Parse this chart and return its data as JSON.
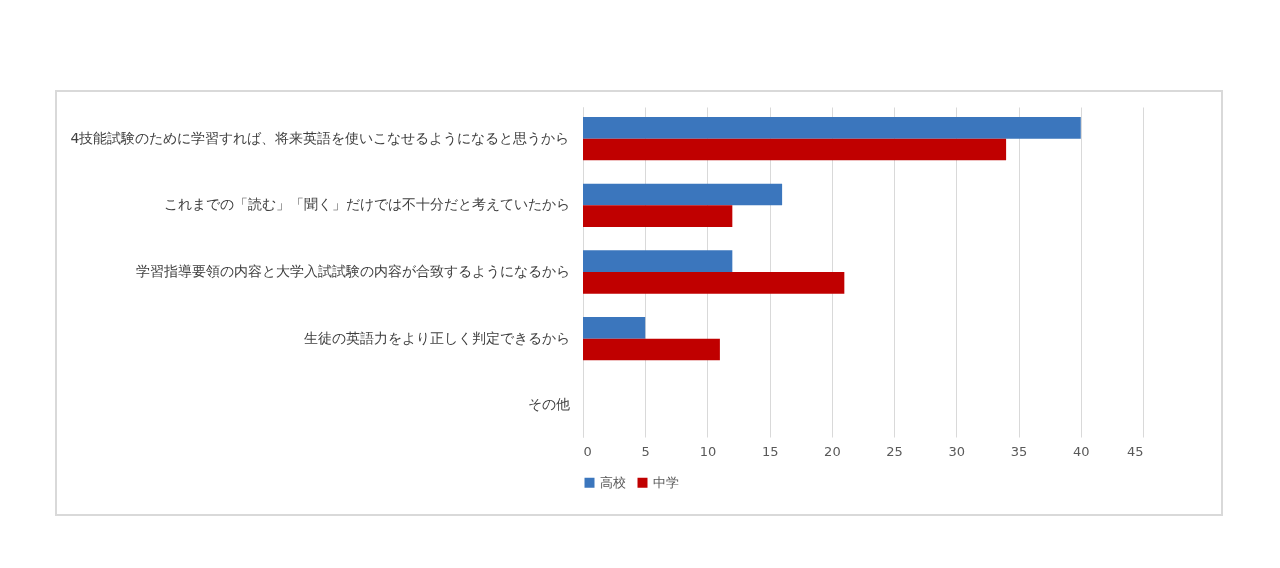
{
  "chart_data": {
    "type": "bar",
    "orientation": "horizontal",
    "categories": [
      "4技能試験のために学習すれば、将来英語を使いこなせるようになると思うから",
      "これまでの「読む」「聞く」だけでは不十分だと考えていたから",
      "学習指導要領の内容と大学入試試験の内容が合致するようになるから",
      "生徒の英語力をより正しく判定できるから",
      "その他"
    ],
    "series": [
      {
        "name": "高校",
        "color": "#3b76bd",
        "values": [
          40,
          16,
          12,
          5,
          0
        ]
      },
      {
        "name": "中学",
        "color": "#c00000",
        "values": [
          34,
          12,
          21,
          11,
          0
        ]
      }
    ],
    "xlim": [
      0,
      45
    ],
    "xticks": [
      0,
      5,
      10,
      15,
      20,
      25,
      30,
      35,
      40,
      45
    ],
    "grid": "x",
    "legend": "bottom"
  }
}
